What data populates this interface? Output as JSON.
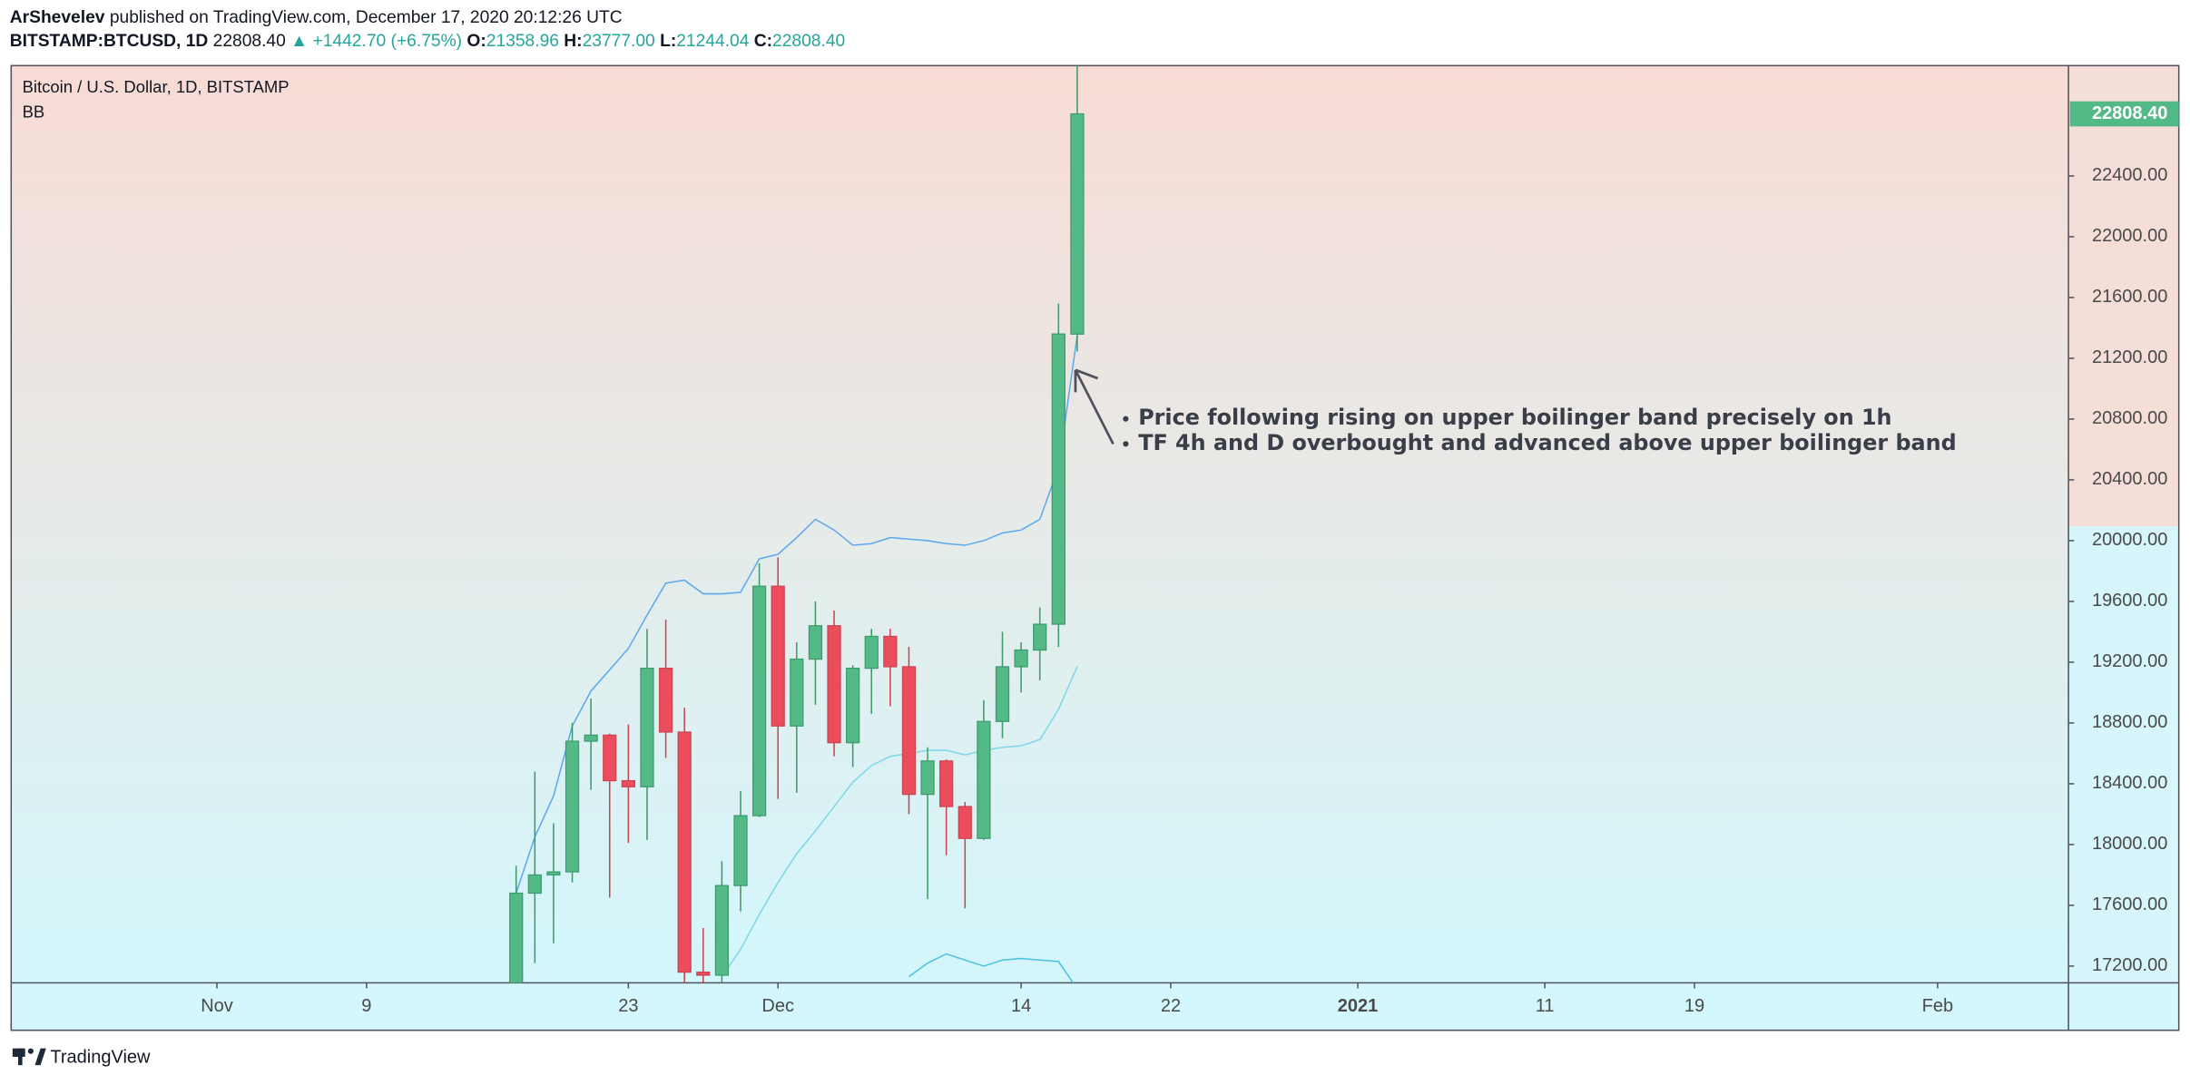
{
  "header": {
    "author": "ArShevelev",
    "published": "published on TradingView.com, December 17, 2020 20:12:26 UTC",
    "symbol": "BITSTAMP:BTCUSD, 1D",
    "last": "22808.40",
    "change": "▲ +1442.70 (+6.75%)",
    "ohlc": [
      {
        "key": "O:",
        "value": "21358.96"
      },
      {
        "key": "H:",
        "value": "23777.00"
      },
      {
        "key": "L:",
        "value": "21244.04"
      },
      {
        "key": "C:",
        "value": "22808.40"
      }
    ]
  },
  "footer": {
    "brand": "TradingView"
  },
  "chart_data": {
    "type": "candlestick",
    "title": "Bitcoin / U.S. Dollar, 1D, BITSTAMP",
    "indicator": "BB",
    "annotation": [
      "Price following rising on upper boilinger band precisely on 1h",
      "TF 4h and D overbought and advanced above upper boilinger band"
    ],
    "x": [
      "2020-11-17",
      "2020-11-18",
      "2020-11-19",
      "2020-11-20",
      "2020-11-21",
      "2020-11-22",
      "2020-11-23",
      "2020-11-24",
      "2020-11-25",
      "2020-11-26",
      "2020-11-27",
      "2020-11-28",
      "2020-11-29",
      "2020-11-30",
      "2020-12-01",
      "2020-12-02",
      "2020-12-03",
      "2020-12-04",
      "2020-12-05",
      "2020-12-06",
      "2020-12-07",
      "2020-12-08",
      "2020-12-09",
      "2020-12-10",
      "2020-12-11",
      "2020-12-12",
      "2020-12-13",
      "2020-12-14",
      "2020-12-15",
      "2020-12-16",
      "2020-12-17"
    ],
    "open": [
      16700,
      17680,
      17800,
      17820,
      18680,
      18720,
      18420,
      18380,
      19160,
      18740,
      17160,
      17140,
      17730,
      18190,
      19700,
      18780,
      19220,
      19440,
      18670,
      19160,
      19370,
      19170,
      18330,
      18550,
      18250,
      18040,
      18810,
      19170,
      19280,
      19450,
      21358.96
    ],
    "high": [
      17860,
      18480,
      18140,
      18800,
      18960,
      18730,
      18790,
      19420,
      19480,
      18900,
      17450,
      17890,
      18350,
      19850,
      19890,
      19330,
      19600,
      19540,
      19180,
      19420,
      19420,
      19300,
      18640,
      18560,
      18280,
      18950,
      19400,
      19330,
      19560,
      21560,
      23777
    ],
    "low": [
      16550,
      17220,
      17350,
      17750,
      18360,
      17650,
      18010,
      18030,
      18570,
      16200,
      16460,
      16880,
      17560,
      18180,
      18300,
      18340,
      18920,
      18580,
      18510,
      18860,
      18910,
      18200,
      17640,
      17930,
      17580,
      18030,
      18700,
      19000,
      19080,
      19300,
      21244.04
    ],
    "close": [
      17680,
      17800,
      17820,
      18680,
      18720,
      18420,
      18380,
      19160,
      18740,
      17160,
      17140,
      17730,
      18190,
      19700,
      18780,
      19220,
      19440,
      18670,
      19160,
      19370,
      19170,
      18330,
      18550,
      18250,
      18040,
      18810,
      19170,
      19280,
      19450,
      21360,
      22808.4
    ],
    "up_color": "#53b987",
    "down_color": "#eb4d5c",
    "bands": [
      {
        "color": "#5ea9ee",
        "values": [
          17680,
          18050,
          18320,
          18780,
          19010,
          19150,
          19290,
          19510,
          19720,
          19740,
          19650,
          19650,
          19660,
          19880,
          19910,
          20020,
          20140,
          20070,
          19970,
          19980,
          20020,
          20010,
          20000,
          19980,
          19970,
          20000,
          20050,
          20070,
          20140,
          20480,
          21350
        ]
      },
      {
        "color": "#7fd8e8",
        "values": [
          null,
          null,
          null,
          null,
          null,
          null,
          null,
          null,
          null,
          null,
          null,
          17130,
          17310,
          17540,
          17750,
          17940,
          18090,
          18250,
          18410,
          18520,
          18580,
          18600,
          18620,
          18620,
          18590,
          18620,
          18640,
          18650,
          18690,
          18890,
          19170
        ]
      },
      {
        "color": "#4ec3dc",
        "values": [
          null,
          null,
          null,
          null,
          null,
          null,
          null,
          null,
          null,
          null,
          null,
          null,
          null,
          null,
          null,
          null,
          null,
          null,
          null,
          null,
          null,
          17130,
          17220,
          17280,
          17240,
          17200,
          17240,
          17250,
          17240,
          17230,
          17050
        ]
      }
    ],
    "xlim": [
      "2020-10-21",
      "2021-02-08"
    ],
    "xticks": [
      {
        "value": "2020-11-01",
        "label": "Nov"
      },
      {
        "value": "2020-11-09",
        "label": "9"
      },
      {
        "value": "2020-11-23",
        "label": "23"
      },
      {
        "value": "2020-12-01",
        "label": "Dec"
      },
      {
        "value": "2020-12-14",
        "label": "14"
      },
      {
        "value": "2020-12-22",
        "label": "22"
      },
      {
        "value": "2021-01-01",
        "label": "2021"
      },
      {
        "value": "2021-01-11",
        "label": "11"
      },
      {
        "value": "2021-01-19",
        "label": "19"
      },
      {
        "value": "2021-02-01",
        "label": "Feb"
      }
    ],
    "ylim": [
      17090,
      23126
    ],
    "yticks": [
      {
        "value": 17200,
        "label": "17200.00"
      },
      {
        "value": 17600,
        "label": "17600.00"
      },
      {
        "value": 18000,
        "label": "18000.00"
      },
      {
        "value": 18400,
        "label": "18400.00"
      },
      {
        "value": 18800,
        "label": "18800.00"
      },
      {
        "value": 19200,
        "label": "19200.00"
      },
      {
        "value": 19600,
        "label": "19600.00"
      },
      {
        "value": 20000,
        "label": "20000.00"
      },
      {
        "value": 20400,
        "label": "20400.00"
      },
      {
        "value": 20800,
        "label": "20800.00"
      },
      {
        "value": 21200,
        "label": "21200.00"
      },
      {
        "value": 21600,
        "label": "21600.00"
      },
      {
        "value": 22000,
        "label": "22000.00"
      },
      {
        "value": 22400,
        "label": "22400.00"
      }
    ],
    "grid": false
  }
}
